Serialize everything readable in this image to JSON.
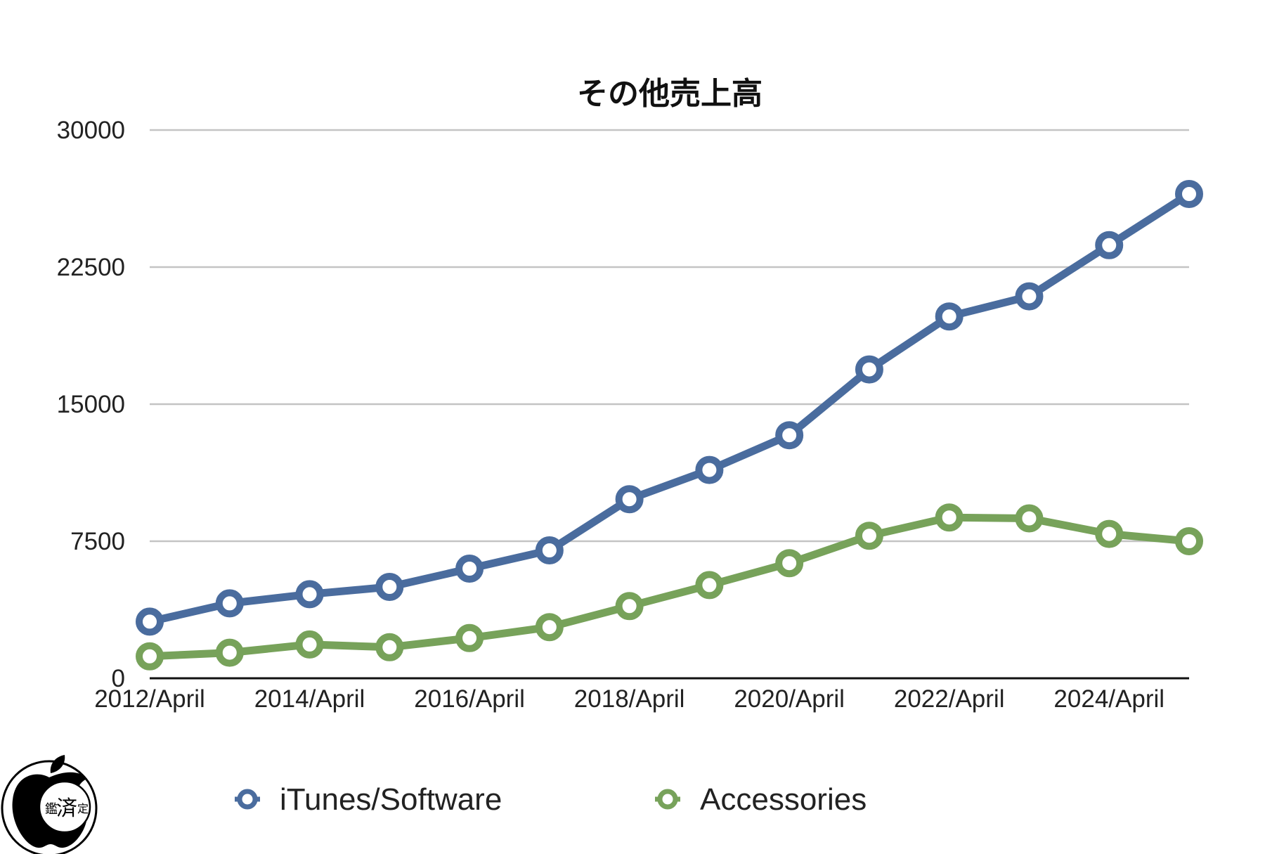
{
  "chart_data": {
    "type": "line",
    "title": "その他売上高",
    "xlabel": "",
    "ylabel": "",
    "ylim": [
      0,
      30000
    ],
    "y_ticks": [
      "0",
      "7500",
      "15000",
      "22500",
      "30000"
    ],
    "x_tick_labels": [
      "2012/April",
      "2014/April",
      "2016/April",
      "2018/April",
      "2020/April",
      "2022/April",
      "2024/April"
    ],
    "x": [
      2012,
      2013,
      2014,
      2015,
      2016,
      2017,
      2018,
      2019,
      2020,
      2021,
      2022,
      2023,
      2024,
      2025
    ],
    "grid": true,
    "legend_position": "bottom",
    "series": [
      {
        "name": "iTunes/Software",
        "color": "#4a6c9e",
        "values": [
          3100,
          4100,
          4600,
          5000,
          6000,
          7000,
          9800,
          11400,
          13300,
          16900,
          19800,
          20900,
          23700,
          26500
        ]
      },
      {
        "name": "Accessories",
        "color": "#77a25a",
        "values": [
          1200,
          1400,
          1850,
          1700,
          2200,
          2800,
          3950,
          5100,
          6300,
          7800,
          8800,
          8750,
          7900,
          7500
        ]
      }
    ]
  },
  "logo": {
    "icon": "apple-logo-icon",
    "stamp_text": "鑑",
    "stamp_text_2": "済",
    "stamp_text_3": "定"
  }
}
